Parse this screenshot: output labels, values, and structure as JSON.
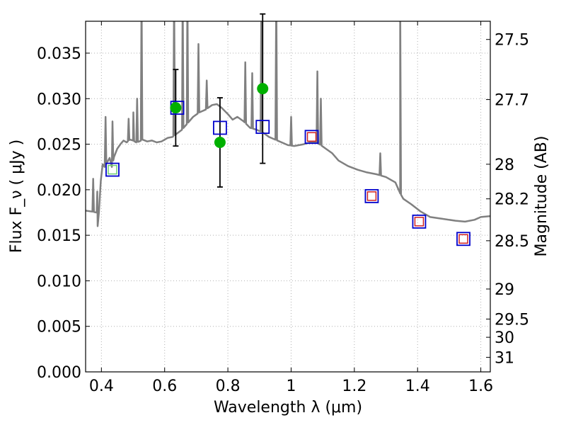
{
  "chart_data": {
    "type": "scatter",
    "title": "",
    "xlabel": "Wavelength  λ (μm)",
    "ylabel_left": "Flux  F_ν  ( μJy )",
    "ylabel_right": "Magnitude (AB)",
    "xlim": [
      0.35,
      1.63
    ],
    "ylim": [
      0.0,
      0.0385
    ],
    "grid": true,
    "legend": "none",
    "x_ticks": [
      {
        "value": 0.4,
        "label": "0.4"
      },
      {
        "value": 0.6,
        "label": "0.6"
      },
      {
        "value": 0.8,
        "label": "0.8"
      },
      {
        "value": 1.0,
        "label": "1"
      },
      {
        "value": 1.2,
        "label": "1.2"
      },
      {
        "value": 1.4,
        "label": "1.4"
      },
      {
        "value": 1.6,
        "label": "1.6"
      }
    ],
    "y_ticks": [
      {
        "value": 0.0,
        "label": "0.000"
      },
      {
        "value": 0.005,
        "label": "0.005"
      },
      {
        "value": 0.01,
        "label": "0.010"
      },
      {
        "value": 0.015,
        "label": "0.015"
      },
      {
        "value": 0.02,
        "label": "0.020"
      },
      {
        "value": 0.025,
        "label": "0.025"
      },
      {
        "value": 0.03,
        "label": "0.030"
      },
      {
        "value": 0.035,
        "label": "0.035"
      }
    ],
    "right_ticks": [
      {
        "flux": 0.0365,
        "label": "27.5"
      },
      {
        "flux": 0.0299,
        "label": "27.7"
      },
      {
        "flux": 0.0228,
        "label": "28"
      },
      {
        "flux": 0.019,
        "label": "28.2"
      },
      {
        "flux": 0.0144,
        "label": "28.5"
      },
      {
        "flux": 0.0091,
        "label": "29"
      },
      {
        "flux": 0.0058,
        "label": "29.5"
      },
      {
        "flux": 0.0038,
        "label": "30"
      },
      {
        "flux": 0.0016,
        "label": "31"
      }
    ],
    "colors": {
      "sed": "#808080",
      "observed": "#00b000",
      "model_box": "#0000cc",
      "model_inner_green": "#6fcf6f",
      "model_inner_red": "#d02020",
      "errorbar": "#000000",
      "grid": "#b0b0b0"
    },
    "observed_points": [
      {
        "x": 0.635,
        "y": 0.029,
        "err": 0.0042
      },
      {
        "x": 0.775,
        "y": 0.0252,
        "err": 0.0049
      },
      {
        "x": 0.91,
        "y": 0.0311,
        "err": 0.0082
      }
    ],
    "model_points": [
      {
        "x": 0.435,
        "y": 0.0222,
        "inner": "green"
      },
      {
        "x": 0.64,
        "y": 0.029,
        "inner": "none"
      },
      {
        "x": 0.775,
        "y": 0.0268,
        "inner": "none"
      },
      {
        "x": 0.91,
        "y": 0.0269,
        "inner": "none"
      },
      {
        "x": 1.065,
        "y": 0.0258,
        "inner": "red"
      },
      {
        "x": 1.255,
        "y": 0.0193,
        "inner": "red"
      },
      {
        "x": 1.405,
        "y": 0.0165,
        "inner": "red"
      },
      {
        "x": 1.545,
        "y": 0.0146,
        "inner": "red"
      }
    ],
    "sed_continuum": [
      [
        0.35,
        0.0177
      ],
      [
        0.37,
        0.0176
      ],
      [
        0.385,
        0.0175
      ],
      [
        0.388,
        0.016
      ],
      [
        0.392,
        0.0175
      ],
      [
        0.398,
        0.021
      ],
      [
        0.404,
        0.0228
      ],
      [
        0.41,
        0.0225
      ],
      [
        0.418,
        0.023
      ],
      [
        0.426,
        0.0235
      ],
      [
        0.433,
        0.0225
      ],
      [
        0.44,
        0.0236
      ],
      [
        0.45,
        0.0245
      ],
      [
        0.46,
        0.025
      ],
      [
        0.47,
        0.0254
      ],
      [
        0.48,
        0.0252
      ],
      [
        0.49,
        0.0255
      ],
      [
        0.5,
        0.0254
      ],
      [
        0.51,
        0.0252
      ],
      [
        0.52,
        0.0253
      ],
      [
        0.53,
        0.0255
      ],
      [
        0.545,
        0.0253
      ],
      [
        0.56,
        0.0254
      ],
      [
        0.575,
        0.0252
      ],
      [
        0.59,
        0.0253
      ],
      [
        0.61,
        0.0257
      ],
      [
        0.625,
        0.0258
      ],
      [
        0.64,
        0.0262
      ],
      [
        0.655,
        0.0266
      ],
      [
        0.67,
        0.0272
      ],
      [
        0.69,
        0.028
      ],
      [
        0.71,
        0.0285
      ],
      [
        0.73,
        0.0288
      ],
      [
        0.75,
        0.0293
      ],
      [
        0.765,
        0.0294
      ],
      [
        0.78,
        0.029
      ],
      [
        0.8,
        0.0283
      ],
      [
        0.815,
        0.0277
      ],
      [
        0.83,
        0.028
      ],
      [
        0.85,
        0.0275
      ],
      [
        0.87,
        0.0268
      ],
      [
        0.89,
        0.0266
      ],
      [
        0.91,
        0.0263
      ],
      [
        0.93,
        0.0258
      ],
      [
        0.95,
        0.0255
      ],
      [
        0.97,
        0.0252
      ],
      [
        0.99,
        0.0249
      ],
      [
        1.01,
        0.0248
      ],
      [
        1.04,
        0.025
      ],
      [
        1.07,
        0.0253
      ],
      [
        1.09,
        0.025
      ],
      [
        1.11,
        0.0245
      ],
      [
        1.13,
        0.024
      ],
      [
        1.15,
        0.0232
      ],
      [
        1.18,
        0.0226
      ],
      [
        1.21,
        0.0222
      ],
      [
        1.24,
        0.0219
      ],
      [
        1.27,
        0.0217
      ],
      [
        1.3,
        0.0214
      ],
      [
        1.33,
        0.0208
      ],
      [
        1.345,
        0.0196
      ],
      [
        1.355,
        0.019
      ],
      [
        1.38,
        0.0184
      ],
      [
        1.41,
        0.0176
      ],
      [
        1.44,
        0.017
      ],
      [
        1.48,
        0.0168
      ],
      [
        1.52,
        0.0166
      ],
      [
        1.55,
        0.0165
      ],
      [
        1.58,
        0.0167
      ],
      [
        1.6,
        0.017
      ],
      [
        1.63,
        0.0171
      ]
    ],
    "sed_emission_lines": [
      {
        "x": 0.374,
        "h": 0.0212
      },
      {
        "x": 0.387,
        "h": 0.0198
      },
      {
        "x": 0.413,
        "h": 0.028
      },
      {
        "x": 0.435,
        "h": 0.0275
      },
      {
        "x": 0.486,
        "h": 0.0278
      },
      {
        "x": 0.501,
        "h": 0.0285
      },
      {
        "x": 0.513,
        "h": 0.03
      },
      {
        "x": 0.527,
        "h": 0.042
      },
      {
        "x": 0.63,
        "h": 0.042
      },
      {
        "x": 0.657,
        "h": 0.042
      },
      {
        "x": 0.672,
        "h": 0.042
      },
      {
        "x": 0.707,
        "h": 0.036
      },
      {
        "x": 0.733,
        "h": 0.032
      },
      {
        "x": 0.855,
        "h": 0.034
      },
      {
        "x": 0.877,
        "h": 0.0328
      },
      {
        "x": 0.906,
        "h": 0.042
      },
      {
        "x": 0.953,
        "h": 0.042
      },
      {
        "x": 1.0,
        "h": 0.028
      },
      {
        "x": 1.083,
        "h": 0.033
      },
      {
        "x": 1.094,
        "h": 0.03
      },
      {
        "x": 1.282,
        "h": 0.024
      },
      {
        "x": 1.345,
        "h": 0.042
      }
    ]
  }
}
